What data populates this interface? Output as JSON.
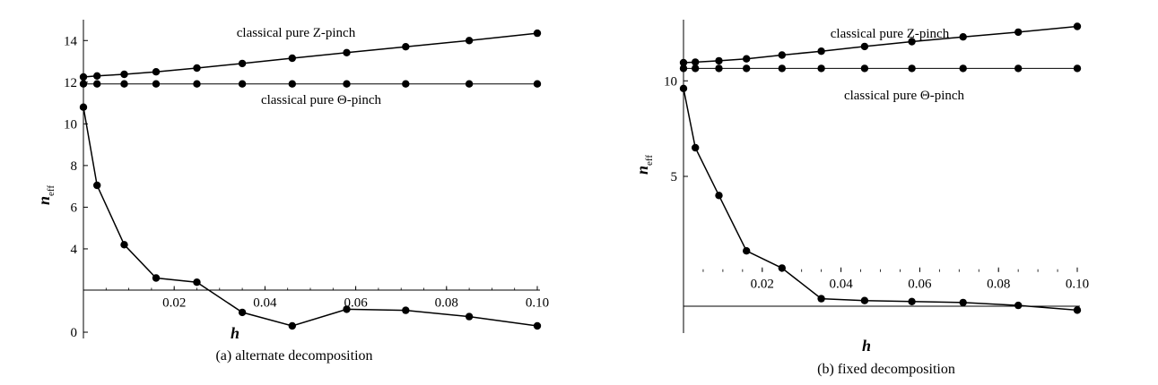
{
  "chart_data": [
    {
      "type": "line",
      "caption": "(a) alternate decomposition",
      "xlabel": "h",
      "ylabel": "n",
      "ylabel_sub": "eff",
      "xlim": [
        0,
        0.1
      ],
      "ylim": [
        -0.3,
        15.0
      ],
      "x_axis_crossing_y": 2,
      "x_ticks": [
        "0.02",
        "0.04",
        "0.06",
        "0.08",
        "0.10"
      ],
      "x_tick_values": [
        0.02,
        0.04,
        0.06,
        0.08,
        0.1
      ],
      "y_ticks": [
        "0",
        "4",
        "6",
        "8",
        "10",
        "12",
        "14"
      ],
      "y_tick_values": [
        0,
        4,
        6,
        8,
        10,
        12,
        14
      ],
      "grid": false,
      "series": [
        {
          "label": "classical pure Z-pinch",
          "x": [
            0,
            0.003,
            0.009,
            0.016,
            0.025,
            0.035,
            0.046,
            0.058,
            0.071,
            0.085,
            0.1
          ],
          "y": [
            12.25,
            12.3,
            12.38,
            12.5,
            12.68,
            12.9,
            13.15,
            13.42,
            13.7,
            14.0,
            14.35
          ]
        },
        {
          "label": "classical pure Θ-pinch",
          "x": [
            0,
            0.003,
            0.009,
            0.016,
            0.025,
            0.035,
            0.046,
            0.058,
            0.071,
            0.085,
            0.1
          ],
          "y": [
            11.92,
            11.92,
            11.92,
            11.92,
            11.92,
            11.92,
            11.92,
            11.92,
            11.92,
            11.92,
            11.92
          ]
        },
        {
          "x": [
            0,
            0.003,
            0.009,
            0.016,
            0.025,
            0.035,
            0.046,
            0.058,
            0.071,
            0.085,
            0.1
          ],
          "y": [
            10.8,
            7.05,
            4.2,
            2.6,
            2.4,
            0.95,
            0.3,
            1.1,
            1.05,
            0.75,
            0.3
          ]
        }
      ]
    },
    {
      "type": "line",
      "caption": "(b) fixed decomposition",
      "xlabel": "h",
      "ylabel": "n",
      "ylabel_sub": "eff",
      "xlim": [
        0,
        0.1
      ],
      "ylim": [
        -3.2,
        13.2
      ],
      "x_axis_crossing_y": 0,
      "x_ticks": [
        "0.02",
        "0.04",
        "0.06",
        "0.08",
        "0.10"
      ],
      "x_tick_values": [
        0.02,
        0.04,
        0.06,
        0.08,
        0.1
      ],
      "y_ticks": [
        "5",
        "10"
      ],
      "y_tick_values": [
        5,
        10
      ],
      "grid": false,
      "series": [
        {
          "label": "classical pure Z-pinch",
          "x": [
            0,
            0.003,
            0.009,
            0.016,
            0.025,
            0.035,
            0.046,
            0.058,
            0.071,
            0.085,
            0.1
          ],
          "y": [
            10.95,
            10.98,
            11.05,
            11.15,
            11.35,
            11.55,
            11.8,
            12.05,
            12.3,
            12.55,
            12.85
          ]
        },
        {
          "label": "classical pure Θ-pinch",
          "x": [
            0,
            0.003,
            0.009,
            0.016,
            0.025,
            0.035,
            0.046,
            0.058,
            0.071,
            0.085,
            0.1
          ],
          "y": [
            10.65,
            10.65,
            10.65,
            10.65,
            10.65,
            10.65,
            10.65,
            10.65,
            10.65,
            10.65,
            10.65
          ]
        },
        {
          "x": [
            0,
            0.003,
            0.009,
            0.016,
            0.025,
            0.035,
            0.046,
            0.058,
            0.071,
            0.085,
            0.1
          ],
          "y": [
            9.6,
            6.5,
            4.0,
            1.1,
            0.2,
            -1.4,
            -1.5,
            -1.55,
            -1.6,
            -1.75,
            -2.0
          ]
        }
      ]
    }
  ]
}
